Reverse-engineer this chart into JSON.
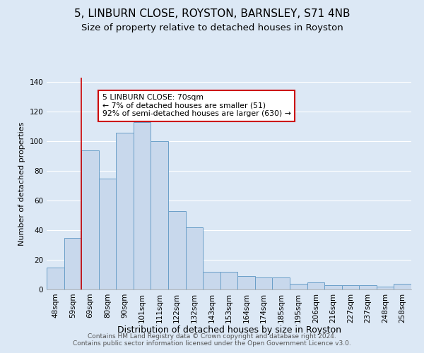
{
  "title": "5, LINBURN CLOSE, ROYSTON, BARNSLEY, S71 4NB",
  "subtitle": "Size of property relative to detached houses in Royston",
  "xlabel": "Distribution of detached houses by size in Royston",
  "ylabel": "Number of detached properties",
  "bar_labels": [
    "48sqm",
    "59sqm",
    "69sqm",
    "80sqm",
    "90sqm",
    "101sqm",
    "111sqm",
    "122sqm",
    "132sqm",
    "143sqm",
    "153sqm",
    "164sqm",
    "174sqm",
    "185sqm",
    "195sqm",
    "206sqm",
    "216sqm",
    "227sqm",
    "237sqm",
    "248sqm",
    "258sqm"
  ],
  "bar_values": [
    15,
    35,
    94,
    75,
    106,
    113,
    100,
    53,
    42,
    12,
    12,
    9,
    8,
    8,
    4,
    5,
    3,
    3,
    3,
    2,
    4
  ],
  "bar_color": "#c8d8ec",
  "bar_edge_color": "#6a9fc8",
  "vline_x_index": 2,
  "vline_color": "#cc0000",
  "annotation_text": "5 LINBURN CLOSE: 70sqm\n← 7% of detached houses are smaller (51)\n92% of semi-detached houses are larger (630) →",
  "annotation_box_color": "#ffffff",
  "annotation_box_edge_color": "#cc0000",
  "ylim": [
    0,
    143
  ],
  "yticks": [
    0,
    20,
    40,
    60,
    80,
    100,
    120,
    140
  ],
  "footer_line1": "Contains HM Land Registry data © Crown copyright and database right 2024.",
  "footer_line2": "Contains public sector information licensed under the Open Government Licence v3.0.",
  "title_fontsize": 11,
  "subtitle_fontsize": 9.5,
  "xlabel_fontsize": 9,
  "ylabel_fontsize": 8,
  "tick_fontsize": 7.5,
  "annotation_fontsize": 7.8,
  "footer_fontsize": 6.5,
  "background_color": "#dce8f5",
  "plot_bg_color": "#dce8f5",
  "grid_color": "#ffffff"
}
